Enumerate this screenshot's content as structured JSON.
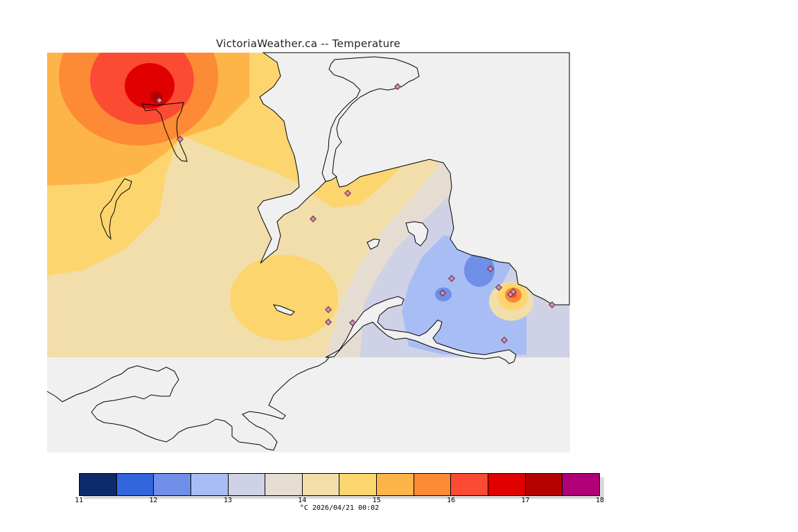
{
  "title": "VictoriaWeather.ca -- Temperature",
  "legend": {
    "ticks": [
      "11",
      "12",
      "13",
      "14",
      "15",
      "16",
      "17",
      "18"
    ],
    "caption": "°C  2026/04/21 00:02",
    "colors": [
      "#0d2a6b",
      "#3366dd",
      "#6f8fe8",
      "#a9bdf5",
      "#cfd2e6",
      "#e6ddd2",
      "#f2deab",
      "#fcd56f",
      "#fdb54a",
      "#fd8a35",
      "#fb4b33",
      "#e10000",
      "#b50000",
      "#b00078"
    ]
  },
  "map": {
    "background_color": "#f0f0f0",
    "water_color": "#ffffff",
    "coastline_color": "#000000",
    "station_marker_color": "#d98ab0"
  }
}
